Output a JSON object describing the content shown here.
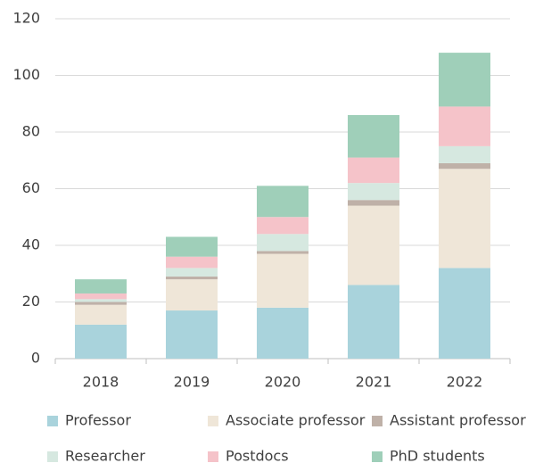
{
  "chart_data": {
    "type": "stacked_bar",
    "categories": [
      "2018",
      "2019",
      "2020",
      "2021",
      "2022"
    ],
    "series": [
      {
        "name": "Professor",
        "color": "#a9d3dc",
        "values": [
          12,
          17,
          18,
          26,
          32
        ]
      },
      {
        "name": "Associate professor",
        "color": "#efe6d8",
        "values": [
          7,
          11,
          19,
          28,
          35
        ]
      },
      {
        "name": "Assistant professor",
        "color": "#bfb1a8",
        "values": [
          1,
          1,
          1,
          2,
          2
        ]
      },
      {
        "name": "Researcher",
        "color": "#d6e8e0",
        "values": [
          1,
          3,
          6,
          6,
          6
        ]
      },
      {
        "name": "Postdocs",
        "color": "#f5c3c9",
        "values": [
          2,
          4,
          6,
          9,
          14
        ]
      },
      {
        "name": "PhD students",
        "color": "#9fcfb9",
        "values": [
          5,
          7,
          11,
          15,
          19
        ]
      }
    ],
    "ylim": [
      0,
      120
    ],
    "yticks": [
      0,
      20,
      40,
      60,
      80,
      100,
      120
    ],
    "grid": true,
    "legend": "bottom"
  }
}
